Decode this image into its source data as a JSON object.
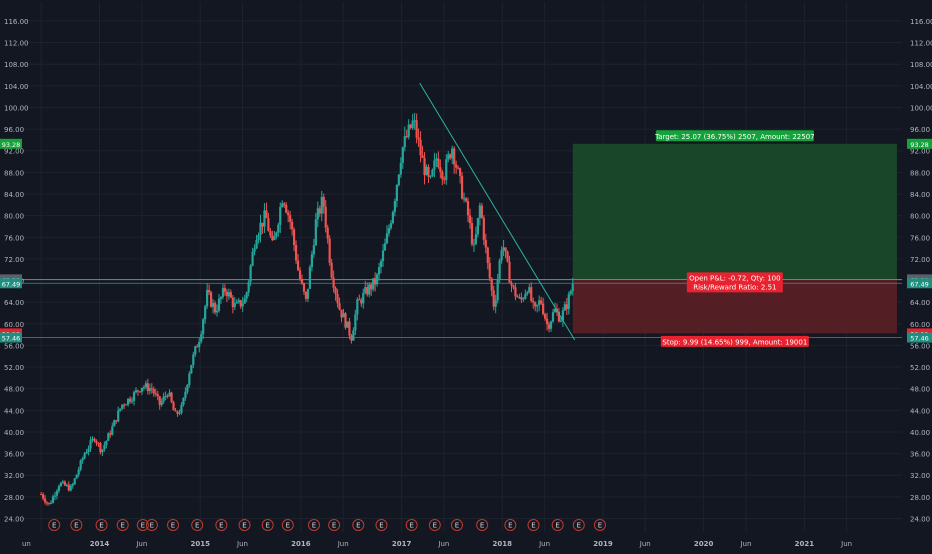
{
  "chart_data": {
    "type": "candlestick",
    "y_ticks": [
      24,
      28,
      32,
      36,
      40,
      44,
      48,
      52,
      56,
      60,
      64,
      68,
      72,
      76,
      80,
      84,
      88,
      92,
      96,
      100,
      104,
      108,
      112,
      116
    ],
    "y_tick_labels": [
      "24.00",
      "28.00",
      "32.00",
      "36.00",
      "40.00",
      "44.00",
      "48.00",
      "52.00",
      "56.00",
      "60.00",
      "64.00",
      "68.00",
      "72.00",
      "76.00",
      "80.00",
      "84.00",
      "88.00",
      "92.00",
      "96.00",
      "100.00",
      "104.00",
      "108.00",
      "112.00",
      "116.00"
    ],
    "ylim": [
      21.5,
      119.5
    ],
    "x_ticks": [
      {
        "label": "un",
        "t": 2013.42
      },
      {
        "label": "2014",
        "t": 2014.0
      },
      {
        "label": "Jun",
        "t": 2014.42
      },
      {
        "label": "2015",
        "t": 2015.0
      },
      {
        "label": "Jun",
        "t": 2015.42
      },
      {
        "label": "2016",
        "t": 2016.0
      },
      {
        "label": "Jun",
        "t": 2016.42
      },
      {
        "label": "2017",
        "t": 2017.0
      },
      {
        "label": "Jun",
        "t": 2017.42
      },
      {
        "label": "2018",
        "t": 2018.0
      },
      {
        "label": "Jun",
        "t": 2018.42
      },
      {
        "label": "2019",
        "t": 2019.0
      },
      {
        "label": "Jun",
        "t": 2019.42
      },
      {
        "label": "2020",
        "t": 2020.0
      },
      {
        "label": "Jun",
        "t": 2020.42
      },
      {
        "label": "2021",
        "t": 2021.0
      },
      {
        "label": "Jun",
        "t": 2021.42
      }
    ],
    "price_path": [
      [
        2013.42,
        28.5
      ],
      [
        2013.5,
        26.5
      ],
      [
        2013.6,
        30.5
      ],
      [
        2013.72,
        29.5
      ],
      [
        2013.85,
        36.0
      ],
      [
        2013.95,
        39.0
      ],
      [
        2014.02,
        36.5
      ],
      [
        2014.12,
        40.5
      ],
      [
        2014.22,
        45.0
      ],
      [
        2014.32,
        46.5
      ],
      [
        2014.42,
        48.5
      ],
      [
        2014.52,
        48.0
      ],
      [
        2014.6,
        45.0
      ],
      [
        2014.68,
        47.5
      ],
      [
        2014.75,
        43.0
      ],
      [
        2014.82,
        44.5
      ],
      [
        2014.9,
        52.0
      ],
      [
        2015.0,
        58.0
      ],
      [
        2015.07,
        65.5
      ],
      [
        2015.15,
        62.5
      ],
      [
        2015.25,
        66.5
      ],
      [
        2015.35,
        63.0
      ],
      [
        2015.45,
        64.5
      ],
      [
        2015.55,
        76.5
      ],
      [
        2015.65,
        80.0
      ],
      [
        2015.72,
        74.0
      ],
      [
        2015.82,
        84.0
      ],
      [
        2015.9,
        78.5
      ],
      [
        2015.98,
        69.0
      ],
      [
        2016.05,
        64.0
      ],
      [
        2016.15,
        79.0
      ],
      [
        2016.22,
        83.0
      ],
      [
        2016.3,
        70.0
      ],
      [
        2016.38,
        63.0
      ],
      [
        2016.45,
        60.0
      ],
      [
        2016.5,
        57.5
      ],
      [
        2016.56,
        63.5
      ],
      [
        2016.65,
        66.0
      ],
      [
        2016.75,
        68.0
      ],
      [
        2016.85,
        75.5
      ],
      [
        2016.92,
        82.0
      ],
      [
        2017.0,
        92.0
      ],
      [
        2017.06,
        95.0
      ],
      [
        2017.12,
        97.5
      ],
      [
        2017.2,
        90.5
      ],
      [
        2017.28,
        85.5
      ],
      [
        2017.35,
        91.0
      ],
      [
        2017.42,
        87.5
      ],
      [
        2017.5,
        93.0
      ],
      [
        2017.58,
        86.0
      ],
      [
        2017.66,
        80.0
      ],
      [
        2017.72,
        73.5
      ],
      [
        2017.78,
        82.0
      ],
      [
        2017.85,
        71.5
      ],
      [
        2017.92,
        63.0
      ],
      [
        2018.0,
        75.5
      ],
      [
        2018.05,
        70.5
      ],
      [
        2018.1,
        66.5
      ],
      [
        2018.18,
        64.0
      ],
      [
        2018.25,
        67.0
      ],
      [
        2018.32,
        62.0
      ],
      [
        2018.38,
        64.5
      ],
      [
        2018.45,
        59.5
      ],
      [
        2018.52,
        62.5
      ],
      [
        2018.58,
        61.0
      ],
      [
        2018.65,
        64.0
      ],
      [
        2018.7,
        67.5
      ]
    ],
    "entry_price": 68.21,
    "last_price": 67.49,
    "target_price": 93.28,
    "stop_price": 58.22,
    "support_price": 57.46,
    "trendline": {
      "start": [
        2017.18,
        104.5
      ],
      "end": [
        2018.72,
        57.0
      ]
    },
    "position": {
      "t_start": 2018.7,
      "t_end": 2021.92
    },
    "earnings_marker_t": [
      2013.55,
      2013.77,
      2014.02,
      2014.23,
      2014.43,
      2014.52,
      2014.73,
      2014.97,
      2015.21,
      2015.44,
      2015.67,
      2015.87,
      2016.13,
      2016.33,
      2016.57,
      2016.8,
      2017.1,
      2017.33,
      2017.55,
      2017.8,
      2018.08,
      2018.31,
      2018.55,
      2018.76,
      2018.97
    ],
    "earnings_marker_label": "E",
    "labels": {
      "target": "Target: 25.07 (36.75%) 2507, Amount: 22507",
      "stop": "Stop: 9.99 (14.65%) 999, Amount: 19001",
      "pnl_line1": "Open P&L: -0.72, Qty: 100",
      "pnl_line2": "Risk/Reward Ratio: 2.51"
    },
    "price_badges": {
      "target": "93.28",
      "entry": "68.21",
      "last": "67.49",
      "stop": "58.22",
      "support": "57.46"
    },
    "colors": {
      "background": "#131722",
      "grid": "#1e222d",
      "up": "#26a69a",
      "down": "#ef5350",
      "axis_text": "#b2b5be",
      "trendline": "#2bb3a3",
      "target_zone": "#1b4d2a",
      "stop_zone": "#5c1f26",
      "target_badge": "#14a33a",
      "stop_badge": "#e8232f",
      "entry_badge": "#5d606b",
      "last_badge": "#1f8f80"
    }
  }
}
